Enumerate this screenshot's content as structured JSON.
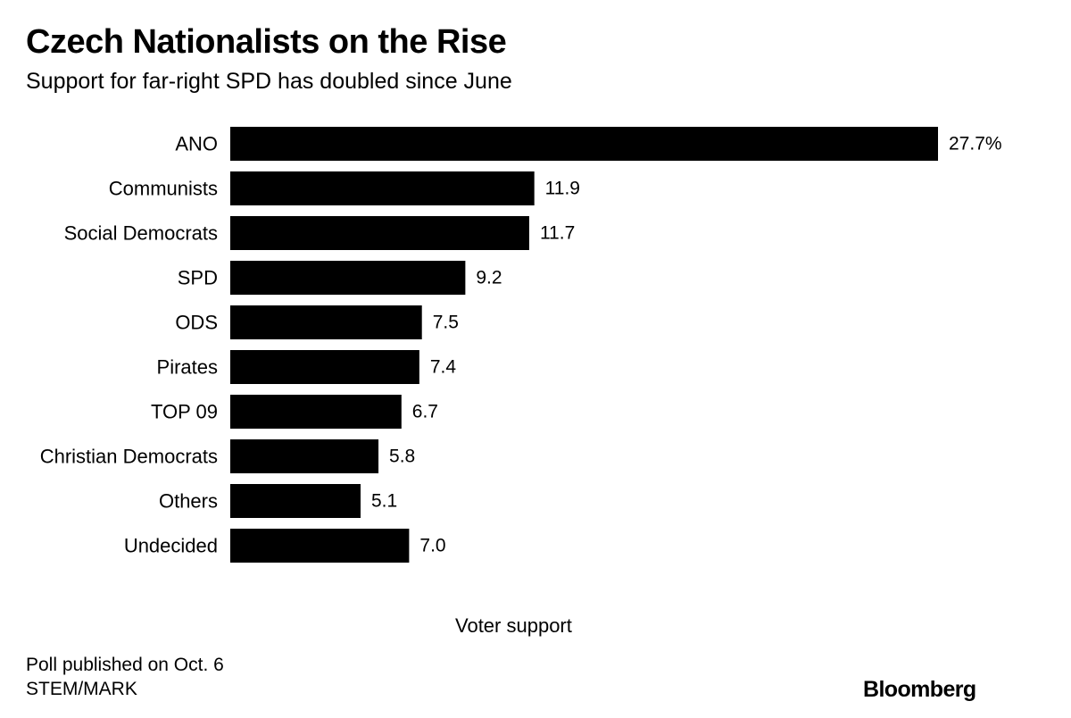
{
  "header": {
    "title": "Czech Nationalists on the Rise",
    "subtitle": "Support for far-right SPD has doubled since June"
  },
  "chart_data": {
    "type": "bar",
    "orientation": "horizontal",
    "categories": [
      "ANO",
      "Communists",
      "Social Democrats",
      "SPD",
      "ODS",
      "Pirates",
      "TOP 09",
      "Christian Democrats",
      "Others",
      "Undecided"
    ],
    "values": [
      27.7,
      11.9,
      11.7,
      9.2,
      7.5,
      7.4,
      6.7,
      5.8,
      5.1,
      7.0
    ],
    "value_labels": [
      "27.7%",
      "11.9",
      "11.7",
      "9.2",
      "7.5",
      "7.4",
      "6.7",
      "5.8",
      "5.1",
      "7.0"
    ],
    "title": "Czech Nationalists on the Rise",
    "subtitle": "Support for far-right SPD has doubled since June",
    "xlabel": "Voter support",
    "ylabel": "",
    "xlim": [
      0,
      27.7
    ],
    "bar_color": "#000000",
    "grid": false,
    "legend": "none"
  },
  "footer": {
    "note_line1": "Poll published on Oct. 6",
    "note_line2": "STEM/MARK",
    "brand": "Bloomberg"
  }
}
